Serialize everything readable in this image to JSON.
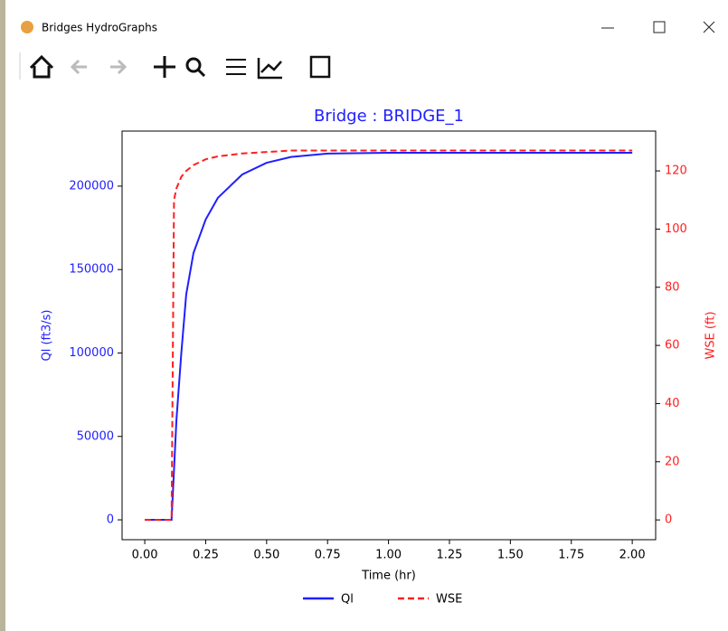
{
  "window": {
    "title": "Bridges HydroGraphs"
  },
  "chart_data": {
    "type": "line",
    "title": "Bridge : BRIDGE_1",
    "x_label": "Time (hr)",
    "y_label": "Ql (ft3/s)",
    "y2_label": "WSE (ft)",
    "x": [
      0,
      0.11,
      0.12,
      0.13,
      0.15,
      0.17,
      0.2,
      0.25,
      0.3,
      0.4,
      0.5,
      0.6,
      0.75,
      1.0,
      1.5,
      2.0
    ],
    "series": [
      {
        "name": "Ql",
        "color": "#1f1fff",
        "dash": false,
        "values": [
          0,
          0,
          30000,
          60000,
          100000,
          135000,
          160000,
          180000,
          193000,
          207000,
          214000,
          217500,
          219500,
          220000,
          220000,
          220000
        ]
      },
      {
        "name": "WSE",
        "color": "#ff2020",
        "dash": true,
        "axis": "y2",
        "values": [
          0,
          0,
          110,
          114,
          118,
          120,
          122,
          124,
          125,
          126,
          126.5,
          127,
          127,
          127,
          127,
          127
        ]
      }
    ],
    "xlim": [
      -0.093,
      2.096
    ],
    "xticks": [
      {
        "value": 0,
        "label": "0.00"
      },
      {
        "value": 0.25,
        "label": "0.25"
      },
      {
        "value": 0.5,
        "label": "0.50"
      },
      {
        "value": 0.75,
        "label": "0.75"
      },
      {
        "value": 1.0,
        "label": "1.00"
      },
      {
        "value": 1.25,
        "label": "1.25"
      },
      {
        "value": 1.5,
        "label": "1.50"
      },
      {
        "value": 1.75,
        "label": "1.75"
      },
      {
        "value": 2.0,
        "label": "2.00"
      }
    ],
    "ylim": [
      -11900,
      233000
    ],
    "yticks": [
      0,
      50000,
      100000,
      150000,
      200000
    ],
    "y2lim": [
      -6.8,
      133.7
    ],
    "y2ticks": [
      0,
      20,
      40,
      60,
      80,
      100,
      120
    ],
    "legend": "bottom"
  }
}
